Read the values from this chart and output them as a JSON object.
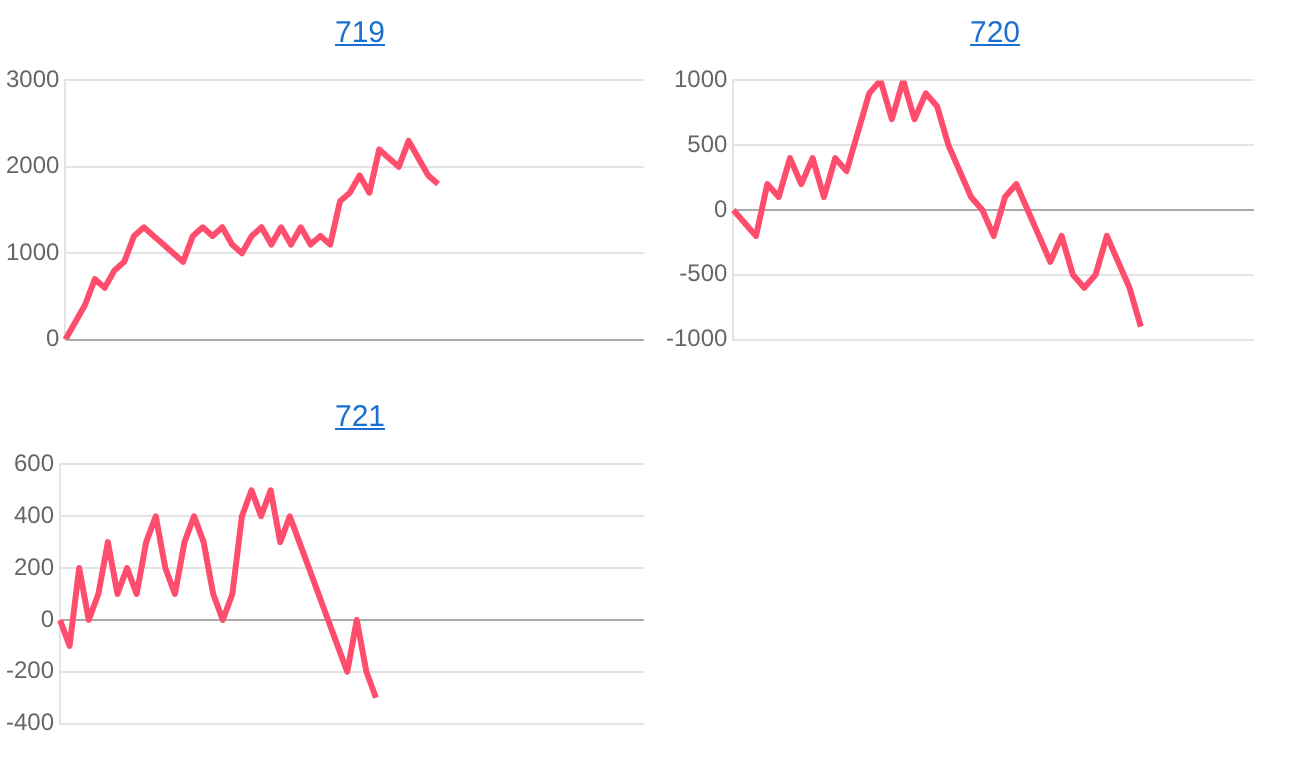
{
  "chart_data": [
    {
      "type": "line",
      "title": "719",
      "categories": [
        null,
        null,
        null,
        null,
        null,
        null,
        null,
        null,
        null,
        null,
        null,
        null,
        null,
        null,
        null,
        null,
        null,
        null,
        null,
        null,
        null,
        null,
        null,
        null,
        null,
        null,
        null,
        null,
        null,
        null,
        null,
        null,
        null,
        null,
        null,
        null,
        null,
        null,
        null,
        null,
        null,
        null,
        null,
        null,
        null,
        null,
        null,
        null,
        null,
        null,
        null,
        null,
        null,
        null,
        null,
        null,
        null,
        null,
        null,
        null
      ],
      "values": [
        0,
        200,
        400,
        700,
        600,
        800,
        900,
        1200,
        1300,
        1200,
        1100,
        1000,
        900,
        1200,
        1300,
        1200,
        1300,
        1100,
        1000,
        1200,
        1300,
        1100,
        1300,
        1100,
        1300,
        1100,
        1200,
        1100,
        1600,
        1700,
        1900,
        1700,
        2200,
        2100,
        2000,
        2300,
        2100,
        1900,
        1800,
        null,
        null,
        null,
        null,
        null,
        null,
        null,
        null,
        null,
        null,
        null,
        null,
        null,
        null,
        null,
        null,
        null,
        null,
        null,
        null,
        null
      ],
      "color": "#ff4d6d",
      "ylim": [
        0,
        3000
      ],
      "yticks": [
        0,
        1000,
        2000,
        3000
      ],
      "grid": "y"
    },
    {
      "type": "line",
      "title": "720",
      "categories": [
        null,
        null,
        null,
        null,
        null,
        null,
        null,
        null,
        null,
        null,
        null,
        null,
        null,
        null,
        null,
        null,
        null,
        null,
        null,
        null,
        null,
        null,
        null,
        null,
        null,
        null,
        null,
        null,
        null,
        null,
        null,
        null,
        null,
        null,
        null,
        null,
        null,
        null,
        null,
        null,
        null,
        null,
        null,
        null,
        null,
        null,
        null
      ],
      "values": [
        0,
        -100,
        -200,
        200,
        100,
        400,
        200,
        400,
        100,
        400,
        300,
        600,
        900,
        1000,
        700,
        1000,
        700,
        900,
        800,
        500,
        300,
        100,
        0,
        -200,
        100,
        200,
        0,
        -200,
        -400,
        -200,
        -500,
        -600,
        -500,
        -200,
        -400,
        -600,
        -900,
        null,
        null,
        null,
        null,
        null,
        null,
        null,
        null,
        null,
        null
      ],
      "color": "#ff4d6d",
      "ylim": [
        -1000,
        1000
      ],
      "yticks": [
        -1000,
        -500,
        0,
        500,
        1000
      ],
      "grid": "y"
    },
    {
      "type": "line",
      "title": "721",
      "categories": [
        null,
        null,
        null,
        null,
        null,
        null,
        null,
        null,
        null,
        null,
        null,
        null,
        null,
        null,
        null,
        null,
        null,
        null,
        null,
        null,
        null,
        null,
        null,
        null,
        null,
        null,
        null,
        null,
        null,
        null,
        null,
        null,
        null,
        null,
        null,
        null,
        null,
        null,
        null,
        null,
        null,
        null,
        null,
        null,
        null,
        null,
        null,
        null,
        null,
        null,
        null,
        null,
        null,
        null,
        null,
        null,
        null,
        null,
        null,
        null,
        null,
        null
      ],
      "values": [
        0,
        -100,
        200,
        0,
        100,
        300,
        100,
        200,
        100,
        300,
        400,
        200,
        100,
        300,
        400,
        300,
        100,
        0,
        100,
        400,
        500,
        400,
        500,
        300,
        400,
        300,
        200,
        100,
        0,
        -100,
        -200,
        0,
        -200,
        -300,
        null,
        null,
        null,
        null,
        null,
        null,
        null,
        null,
        null,
        null,
        null,
        null,
        null,
        null,
        null,
        null,
        null,
        null,
        null,
        null,
        null,
        null,
        null,
        null,
        null,
        null,
        null,
        null
      ],
      "color": "#ff4d6d",
      "ylim": [
        -400,
        600
      ],
      "yticks": [
        -400,
        -200,
        0,
        200,
        400,
        600
      ],
      "grid": "y"
    }
  ]
}
